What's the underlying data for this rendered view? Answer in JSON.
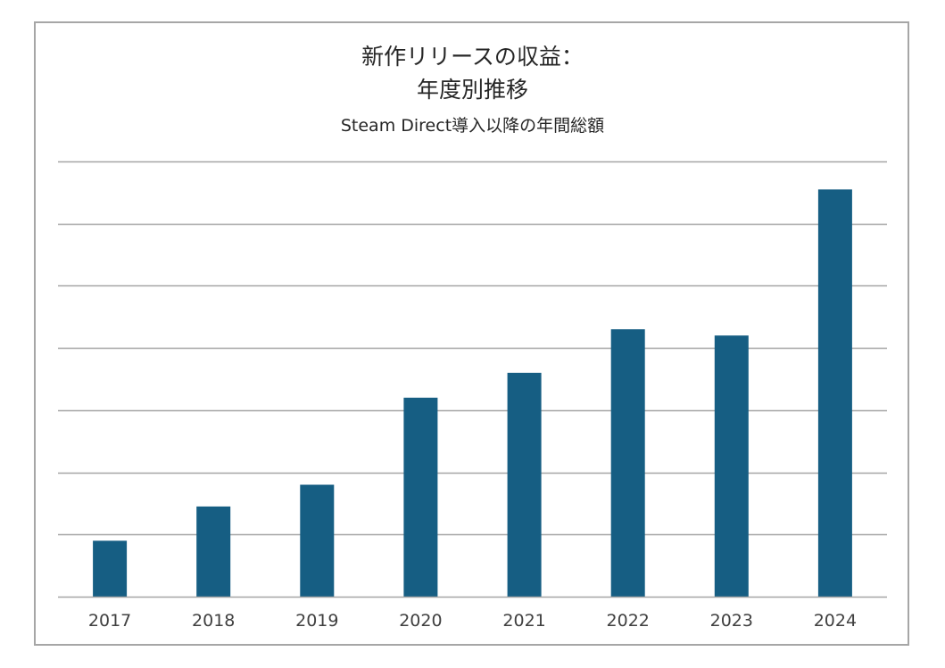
{
  "chart_data": {
    "type": "bar",
    "title": "新作リリースの収益：\n年度別推移",
    "title_lines": [
      "新作リリースの収益：",
      "年度別推移"
    ],
    "subtitle": "Steam Direct導入以降の年間総額",
    "categories": [
      "2017",
      "2018",
      "2019",
      "2020",
      "2021",
      "2022",
      "2023",
      "2024"
    ],
    "values": [
      0.9,
      1.45,
      1.8,
      3.2,
      3.6,
      4.3,
      4.2,
      6.55
    ],
    "ylim": [
      0,
      7
    ],
    "gridlines": 7,
    "y_tick_labels_visible": false,
    "grid": true,
    "legend": "none",
    "colors": {
      "bar": "#165e83",
      "grid": "#a6a6a6",
      "axis": "#a6a6a6",
      "border": "#a6a6a6",
      "text": "#262626"
    }
  }
}
